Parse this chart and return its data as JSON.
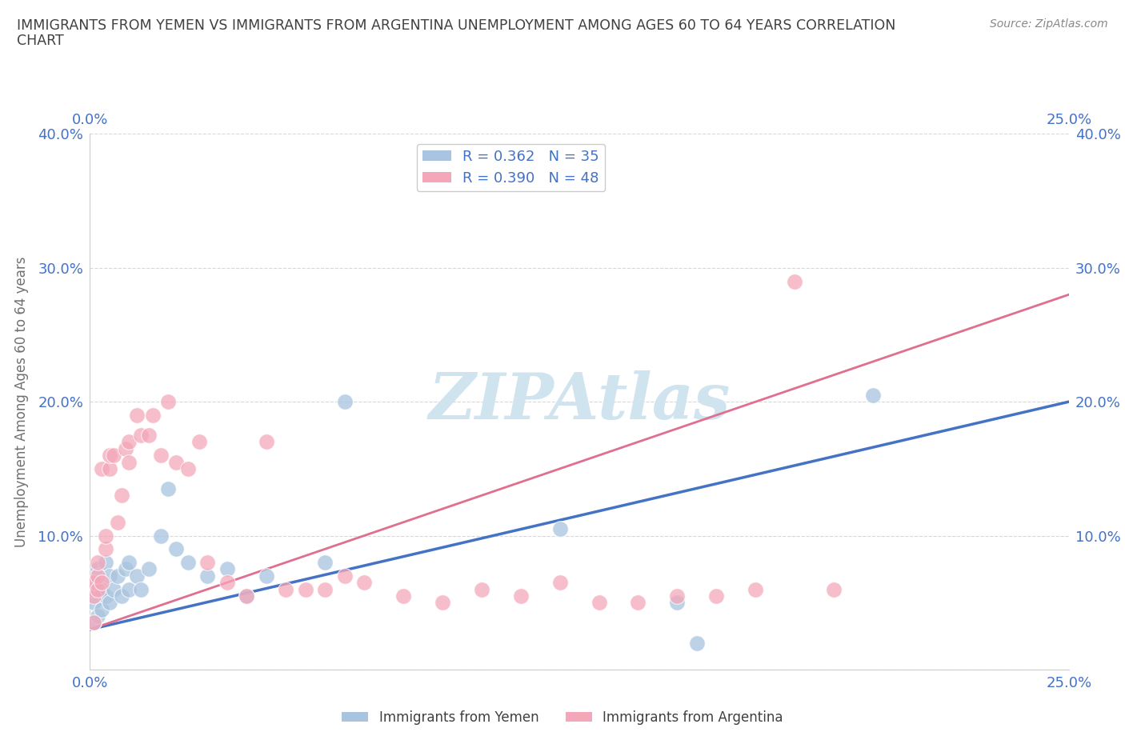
{
  "title_line1": "IMMIGRANTS FROM YEMEN VS IMMIGRANTS FROM ARGENTINA UNEMPLOYMENT AMONG AGES 60 TO 64 YEARS CORRELATION",
  "title_line2": "CHART",
  "source_text": "Source: ZipAtlas.com",
  "ylabel": "Unemployment Among Ages 60 to 64 years",
  "xlim": [
    0.0,
    0.25
  ],
  "ylim": [
    0.0,
    0.4
  ],
  "xtick_positions": [
    0.0,
    0.05,
    0.1,
    0.15,
    0.2,
    0.25
  ],
  "xtick_labels": [
    "0.0%",
    "",
    "",
    "",
    "",
    "25.0%"
  ],
  "ytick_positions": [
    0.0,
    0.1,
    0.2,
    0.3,
    0.4
  ],
  "ytick_labels": [
    "",
    "10.0%",
    "20.0%",
    "30.0%",
    "40.0%"
  ],
  "yemen_color": "#a8c4e0",
  "argentina_color": "#f4a7b9",
  "yemen_line_color": "#4472c4",
  "argentina_line_color": "#e07090",
  "yemen_R": 0.362,
  "yemen_N": 35,
  "argentina_R": 0.39,
  "argentina_N": 48,
  "watermark": "ZIPAtlas",
  "watermark_color": "#d0e4f0",
  "yemen_scatter_x": [
    0.001,
    0.001,
    0.001,
    0.002,
    0.002,
    0.002,
    0.003,
    0.003,
    0.004,
    0.004,
    0.005,
    0.005,
    0.006,
    0.007,
    0.008,
    0.009,
    0.01,
    0.01,
    0.012,
    0.013,
    0.015,
    0.018,
    0.02,
    0.022,
    0.025,
    0.03,
    0.035,
    0.04,
    0.045,
    0.06,
    0.065,
    0.12,
    0.15,
    0.155,
    0.2
  ],
  "yemen_scatter_y": [
    0.035,
    0.05,
    0.06,
    0.04,
    0.065,
    0.075,
    0.045,
    0.06,
    0.055,
    0.08,
    0.05,
    0.07,
    0.06,
    0.07,
    0.055,
    0.075,
    0.06,
    0.08,
    0.07,
    0.06,
    0.075,
    0.1,
    0.135,
    0.09,
    0.08,
    0.07,
    0.075,
    0.055,
    0.07,
    0.08,
    0.2,
    0.105,
    0.05,
    0.02,
    0.205
  ],
  "argentina_scatter_x": [
    0.001,
    0.001,
    0.001,
    0.002,
    0.002,
    0.002,
    0.003,
    0.003,
    0.004,
    0.004,
    0.005,
    0.005,
    0.006,
    0.007,
    0.008,
    0.009,
    0.01,
    0.01,
    0.012,
    0.013,
    0.015,
    0.016,
    0.018,
    0.02,
    0.022,
    0.025,
    0.028,
    0.03,
    0.035,
    0.04,
    0.045,
    0.05,
    0.055,
    0.06,
    0.065,
    0.07,
    0.08,
    0.09,
    0.1,
    0.11,
    0.12,
    0.13,
    0.14,
    0.15,
    0.16,
    0.17,
    0.18,
    0.19
  ],
  "argentina_scatter_y": [
    0.035,
    0.055,
    0.065,
    0.06,
    0.07,
    0.08,
    0.065,
    0.15,
    0.09,
    0.1,
    0.15,
    0.16,
    0.16,
    0.11,
    0.13,
    0.165,
    0.17,
    0.155,
    0.19,
    0.175,
    0.175,
    0.19,
    0.16,
    0.2,
    0.155,
    0.15,
    0.17,
    0.08,
    0.065,
    0.055,
    0.17,
    0.06,
    0.06,
    0.06,
    0.07,
    0.065,
    0.055,
    0.05,
    0.06,
    0.055,
    0.065,
    0.05,
    0.05,
    0.055,
    0.055,
    0.06,
    0.29,
    0.06
  ],
  "background_color": "#ffffff",
  "grid_color": "#d8d8d8",
  "title_color": "#404040",
  "axis_label_color": "#707070",
  "tick_color": "#4472c4",
  "legend_text_color": "#4472c4"
}
